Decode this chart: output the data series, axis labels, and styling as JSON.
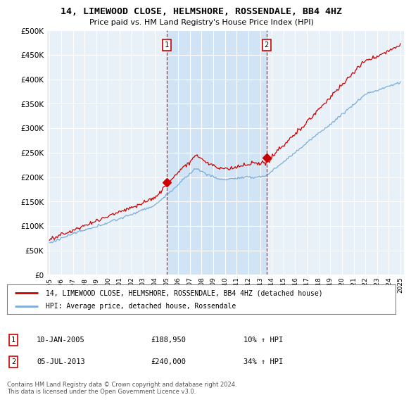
{
  "title": "14, LIMEWOOD CLOSE, HELMSHORE, ROSSENDALE, BB4 4HZ",
  "subtitle": "Price paid vs. HM Land Registry's House Price Index (HPI)",
  "ylim": [
    0,
    500000
  ],
  "yticks": [
    0,
    50000,
    100000,
    150000,
    200000,
    250000,
    300000,
    350000,
    400000,
    450000,
    500000
  ],
  "ytick_labels": [
    "£0",
    "£50K",
    "£100K",
    "£150K",
    "£200K",
    "£250K",
    "£300K",
    "£350K",
    "£400K",
    "£450K",
    "£500K"
  ],
  "hpi_color": "#7aaddc",
  "price_color": "#cc0000",
  "vline_color": "#cc0000",
  "background_color": "#e8f0f8",
  "shade_color": "#d0e4f5",
  "sale1_x": 2005.03,
  "sale1_y": 188950,
  "sale2_x": 2013.55,
  "sale2_y": 240000,
  "legend_house": "14, LIMEWOOD CLOSE, HELMSHORE, ROSSENDALE, BB4 4HZ (detached house)",
  "legend_hpi": "HPI: Average price, detached house, Rossendale",
  "note1_date": "10-JAN-2005",
  "note1_price": "£188,950",
  "note1_hpi": "10% ↑ HPI",
  "note2_date": "05-JUL-2013",
  "note2_price": "£240,000",
  "note2_hpi": "34% ↑ HPI",
  "footer": "Contains HM Land Registry data © Crown copyright and database right 2024.\nThis data is licensed under the Open Government Licence v3.0.",
  "xlim_start": 1994.8,
  "xlim_end": 2025.3
}
